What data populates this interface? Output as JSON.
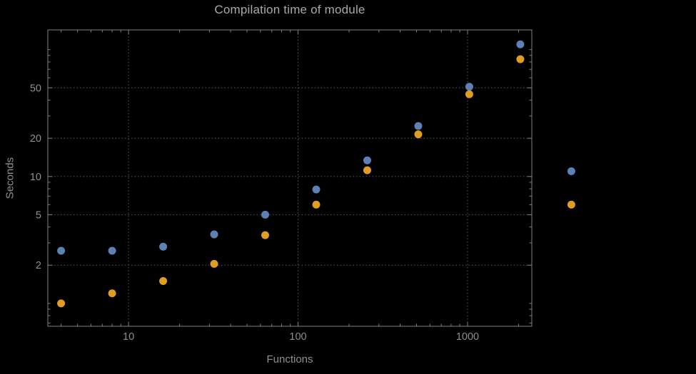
{
  "colors": {
    "background": "#000000",
    "title_text": "#a9a9a9",
    "label_text": "#8f8f8f",
    "tick_text": "#8f8f8f",
    "frame": "#7f7f7f",
    "grid": "#5a5a5a",
    "series_blue": "#5e81b5",
    "series_orange": "#e19c24"
  },
  "chart_data": {
    "type": "scatter",
    "title": "Compilation time of module",
    "xlabel": "Functions",
    "ylabel": "Seconds",
    "x_scale": "log",
    "y_scale": "log",
    "xlim": [
      3.34,
      2394
    ],
    "ylim": [
      0.66,
      143
    ],
    "grid": "dotted",
    "legend": "none",
    "x_ticks": [
      10,
      100,
      1000
    ],
    "y_ticks": [
      2,
      5,
      10,
      20,
      50
    ],
    "x_minor_ticks": [
      4,
      5,
      6,
      7,
      8,
      9,
      20,
      30,
      40,
      50,
      60,
      70,
      80,
      90,
      200,
      300,
      400,
      500,
      600,
      700,
      800,
      900,
      2000
    ],
    "y_minor_ticks": [
      0.7,
      0.8,
      0.9,
      1,
      3,
      4,
      6,
      7,
      8,
      9,
      30,
      40,
      60,
      70,
      80,
      90,
      100
    ],
    "x": [
      4,
      8,
      16,
      32,
      64,
      128,
      256,
      512,
      1024,
      2048
    ],
    "series": [
      {
        "name": "blue-series",
        "color": "#5e81b5",
        "values": [
          2.6,
          2.6,
          2.8,
          3.5,
          5.0,
          7.9,
          13.4,
          25,
          51,
          110
        ]
      },
      {
        "name": "orange-series",
        "color": "#e19c24",
        "values": [
          1.0,
          1.2,
          1.5,
          2.05,
          3.45,
          6.0,
          11.2,
          21.5,
          44.5,
          84
        ]
      }
    ],
    "outside_frame_points": [
      {
        "series": "blue-series",
        "color": "#5e81b5",
        "x": 4096,
        "y": 11
      },
      {
        "series": "orange-series",
        "color": "#e19c24",
        "x": 4096,
        "y": 6
      }
    ]
  }
}
